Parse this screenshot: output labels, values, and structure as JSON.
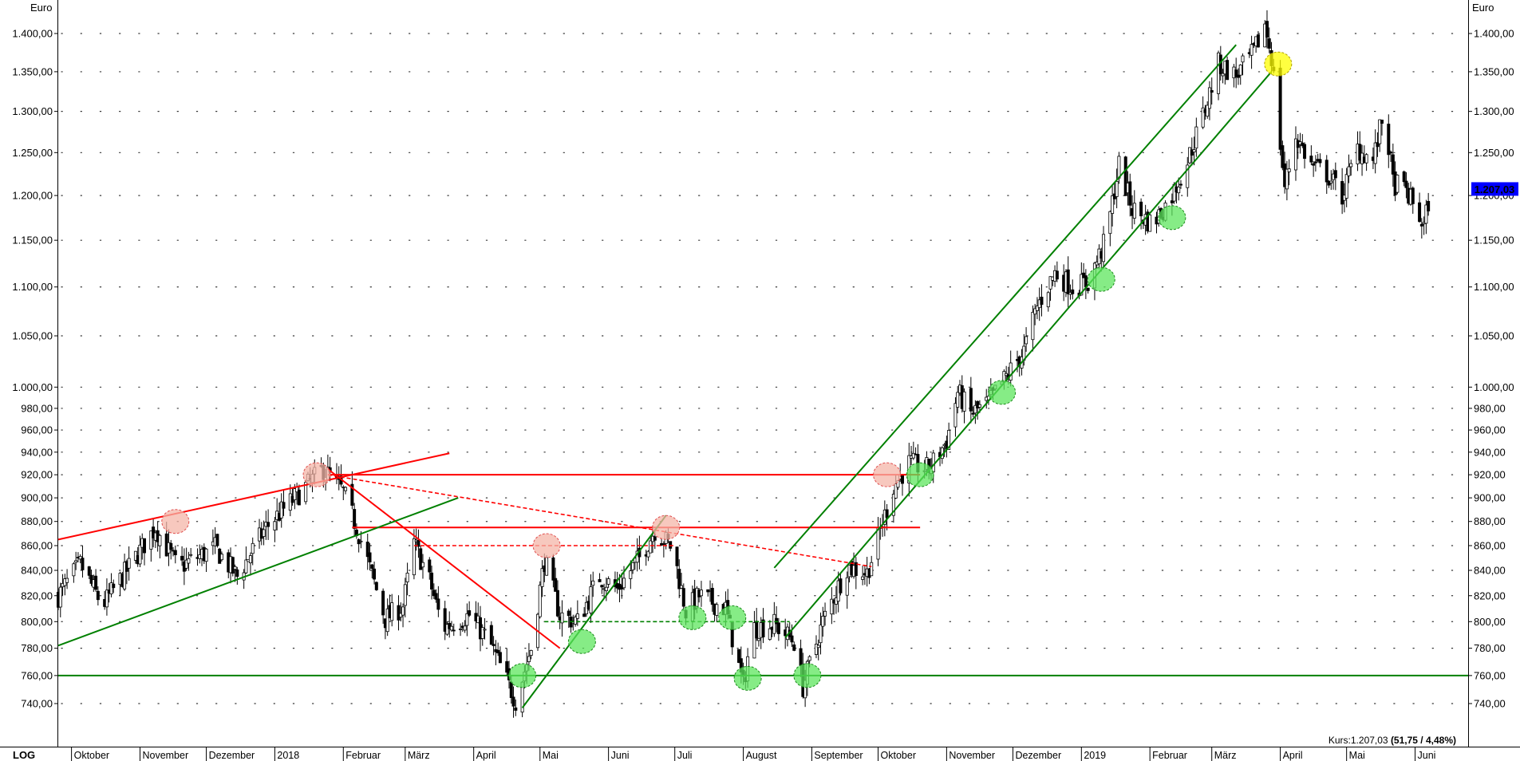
{
  "chart_data": {
    "type": "candlestick",
    "unit_label": "Euro",
    "scale_label": "LOG",
    "y_scale": "log",
    "ylim": [
      720,
      1430
    ],
    "y_ticks": [
      {
        "v": 1400,
        "label": "1.400,00"
      },
      {
        "v": 1350,
        "label": "1.350,00"
      },
      {
        "v": 1300,
        "label": "1.300,00"
      },
      {
        "v": 1250,
        "label": "1.250,00"
      },
      {
        "v": 1200,
        "label": "1.200,00"
      },
      {
        "v": 1150,
        "label": "1.150,00"
      },
      {
        "v": 1100,
        "label": "1.100,00"
      },
      {
        "v": 1050,
        "label": "1.050,00"
      },
      {
        "v": 1000,
        "label": "1.000,00"
      },
      {
        "v": 980,
        "label": "980,00"
      },
      {
        "v": 960,
        "label": "960,00"
      },
      {
        "v": 940,
        "label": "940,00"
      },
      {
        "v": 920,
        "label": "920,00"
      },
      {
        "v": 900,
        "label": "900,00"
      },
      {
        "v": 880,
        "label": "880,00"
      },
      {
        "v": 860,
        "label": "860,00"
      },
      {
        "v": 840,
        "label": "840,00"
      },
      {
        "v": 820,
        "label": "820,00"
      },
      {
        "v": 800,
        "label": "800,00"
      },
      {
        "v": 780,
        "label": "780,00"
      },
      {
        "v": 760,
        "label": "760,00"
      },
      {
        "v": 740,
        "label": "740,00"
      }
    ],
    "x_start": "2017-09-25",
    "x_end": "2019-06-25",
    "months": [
      {
        "label": "Oktober",
        "date": "2017-10-01"
      },
      {
        "label": "November",
        "date": "2017-11-01"
      },
      {
        "label": "Dezember",
        "date": "2017-12-01"
      },
      {
        "label": "2018",
        "date": "2018-01-01"
      },
      {
        "label": "Februar",
        "date": "2018-02-01"
      },
      {
        "label": "März",
        "date": "2018-03-01"
      },
      {
        "label": "April",
        "date": "2018-04-01"
      },
      {
        "label": "Mai",
        "date": "2018-05-01"
      },
      {
        "label": "Juni",
        "date": "2018-06-01"
      },
      {
        "label": "Juli",
        "date": "2018-07-01"
      },
      {
        "label": "August",
        "date": "2018-08-01"
      },
      {
        "label": "September",
        "date": "2018-09-01"
      },
      {
        "label": "Oktober",
        "date": "2018-10-01"
      },
      {
        "label": "November",
        "date": "2018-11-01"
      },
      {
        "label": "Dezember",
        "date": "2018-12-01"
      },
      {
        "label": "2019",
        "date": "2019-01-01"
      },
      {
        "label": "Februar",
        "date": "2019-02-01"
      },
      {
        "label": "März",
        "date": "2019-03-01"
      },
      {
        "label": "April",
        "date": "2019-04-01"
      },
      {
        "label": "Mai",
        "date": "2019-05-01"
      },
      {
        "label": "Juni",
        "date": "2019-06-01"
      }
    ],
    "path": [
      [
        "2017-09-25",
        820
      ],
      [
        "2017-10-05",
        845
      ],
      [
        "2017-10-15",
        812
      ],
      [
        "2017-10-28",
        845
      ],
      [
        "2017-11-08",
        875
      ],
      [
        "2017-11-18",
        842
      ],
      [
        "2017-12-05",
        858
      ],
      [
        "2017-12-15",
        835
      ],
      [
        "2017-12-28",
        875
      ],
      [
        "2018-01-10",
        900
      ],
      [
        "2018-01-23",
        925
      ],
      [
        "2018-02-01",
        905
      ],
      [
        "2018-02-08",
        870
      ],
      [
        "2018-02-20",
        802
      ],
      [
        "2018-02-28",
        812
      ],
      [
        "2018-03-05",
        862
      ],
      [
        "2018-03-12",
        832
      ],
      [
        "2018-03-18",
        795
      ],
      [
        "2018-03-30",
        805
      ],
      [
        "2018-04-08",
        785
      ],
      [
        "2018-04-20",
        742
      ],
      [
        "2018-04-27",
        780
      ],
      [
        "2018-05-03",
        848
      ],
      [
        "2018-05-10",
        805
      ],
      [
        "2018-05-18",
        800
      ],
      [
        "2018-05-28",
        835
      ],
      [
        "2018-06-05",
        825
      ],
      [
        "2018-06-15",
        850
      ],
      [
        "2018-06-22",
        873
      ],
      [
        "2018-06-30",
        858
      ],
      [
        "2018-07-06",
        808
      ],
      [
        "2018-07-12",
        820
      ],
      [
        "2018-07-18",
        815
      ],
      [
        "2018-07-24",
        810
      ],
      [
        "2018-08-01",
        752
      ],
      [
        "2018-08-05",
        795
      ],
      [
        "2018-08-15",
        798
      ],
      [
        "2018-08-24",
        785
      ],
      [
        "2018-08-28",
        752
      ],
      [
        "2018-09-06",
        800
      ],
      [
        "2018-09-17",
        843
      ],
      [
        "2018-09-26",
        838
      ],
      [
        "2018-09-30",
        860
      ],
      [
        "2018-10-08",
        910
      ],
      [
        "2018-10-15",
        930
      ],
      [
        "2018-10-24",
        925
      ],
      [
        "2018-11-01",
        950
      ],
      [
        "2018-11-06",
        995
      ],
      [
        "2018-11-12",
        975
      ],
      [
        "2018-11-20",
        985
      ],
      [
        "2018-11-28",
        1010
      ],
      [
        "2018-12-06",
        1035
      ],
      [
        "2018-12-12",
        1080
      ],
      [
        "2018-12-20",
        1115
      ],
      [
        "2018-12-28",
        1100
      ],
      [
        "2019-01-04",
        1105
      ],
      [
        "2019-01-12",
        1150
      ],
      [
        "2019-01-18",
        1235
      ],
      [
        "2019-01-24",
        1185
      ],
      [
        "2019-02-02",
        1168
      ],
      [
        "2019-02-10",
        1195
      ],
      [
        "2019-02-18",
        1240
      ],
      [
        "2019-02-25",
        1295
      ],
      [
        "2019-03-04",
        1360
      ],
      [
        "2019-03-12",
        1345
      ],
      [
        "2019-03-20",
        1375
      ],
      [
        "2019-03-25",
        1412
      ],
      [
        "2019-03-28",
        1370
      ],
      [
        "2019-04-01",
        1260
      ],
      [
        "2019-04-03",
        1210
      ],
      [
        "2019-04-08",
        1270
      ],
      [
        "2019-04-15",
        1235
      ],
      [
        "2019-04-22",
        1225
      ],
      [
        "2019-04-29",
        1200
      ],
      [
        "2019-05-06",
        1255
      ],
      [
        "2019-05-13",
        1240
      ],
      [
        "2019-05-18",
        1300
      ],
      [
        "2019-05-22",
        1215
      ],
      [
        "2019-05-28",
        1205
      ],
      [
        "2019-06-05",
        1165
      ],
      [
        "2019-06-08",
        1207
      ]
    ],
    "last_value_label": "1.207,03",
    "kurs_prefix": "Kurs:1.207,03 ",
    "kurs_change": "(51,75 / 4,48%)",
    "colors": {
      "candle": "#000000",
      "resistance": "#ff0000",
      "support": "#008000",
      "marker_red": "#f4b6a8",
      "marker_green": "#5ee65e",
      "marker_yellow": "#ffff00",
      "last_label_bg": "#0000ff",
      "grid_dot": "#333333"
    },
    "annotations": {
      "red_lines": [
        {
          "p1": [
            "2017-09-25",
            865
          ],
          "p2": [
            "2018-03-21",
            939
          ],
          "style": "solid"
        },
        {
          "p1": [
            "2018-01-25",
            925
          ],
          "p2": [
            "2018-05-10",
            780
          ],
          "style": "solid"
        },
        {
          "p1": [
            "2018-01-25",
            920
          ],
          "p2": [
            "2018-10-20",
            920
          ],
          "style": "solid"
        },
        {
          "p1": [
            "2018-02-05",
            875
          ],
          "p2": [
            "2018-10-20",
            875
          ],
          "style": "solid"
        },
        {
          "p1": [
            "2018-01-25",
            920
          ],
          "p2": [
            "2018-09-28",
            843
          ],
          "style": "dashed"
        },
        {
          "p1": [
            "2018-03-05",
            860
          ],
          "p2": [
            "2018-07-01",
            860
          ],
          "style": "dashed"
        }
      ],
      "green_lines": [
        {
          "p1": [
            "2017-09-25",
            782
          ],
          "p2": [
            "2018-03-25",
            900
          ],
          "style": "solid"
        },
        {
          "p1": [
            "2017-09-25",
            760
          ],
          "p2": [
            "2019-06-25",
            760
          ],
          "style": "solid"
        },
        {
          "p1": [
            "2018-04-23",
            737
          ],
          "p2": [
            "2018-06-27",
            885
          ],
          "style": "solid"
        },
        {
          "p1": [
            "2018-05-03",
            800
          ],
          "p2": [
            "2018-08-22",
            800
          ],
          "style": "dashed"
        },
        {
          "p1": [
            "2018-08-20",
            788
          ],
          "p2": [
            "2019-03-28",
            1350
          ],
          "style": "solid"
        },
        {
          "p1": [
            "2018-08-15",
            842
          ],
          "p2": [
            "2019-03-12",
            1385
          ],
          "style": "solid"
        }
      ],
      "markers": [
        {
          "date": "2017-11-17",
          "v": 880,
          "color": "red"
        },
        {
          "date": "2018-01-20",
          "v": 920,
          "color": "red"
        },
        {
          "date": "2018-05-04",
          "v": 860,
          "color": "red"
        },
        {
          "date": "2018-06-27",
          "v": 875,
          "color": "red"
        },
        {
          "date": "2018-10-05",
          "v": 920,
          "color": "red"
        },
        {
          "date": "2018-04-23",
          "v": 760,
          "color": "green"
        },
        {
          "date": "2018-05-20",
          "v": 785,
          "color": "green"
        },
        {
          "date": "2018-07-09",
          "v": 803,
          "color": "green"
        },
        {
          "date": "2018-07-27",
          "v": 803,
          "color": "green"
        },
        {
          "date": "2018-08-03",
          "v": 758,
          "color": "green"
        },
        {
          "date": "2018-08-30",
          "v": 760,
          "color": "green"
        },
        {
          "date": "2018-10-20",
          "v": 920,
          "color": "green"
        },
        {
          "date": "2018-11-26",
          "v": 995,
          "color": "green"
        },
        {
          "date": "2019-01-10",
          "v": 1108,
          "color": "green"
        },
        {
          "date": "2019-02-11",
          "v": 1175,
          "color": "green"
        },
        {
          "date": "2019-03-31",
          "v": 1360,
          "color": "yellow"
        }
      ]
    }
  }
}
